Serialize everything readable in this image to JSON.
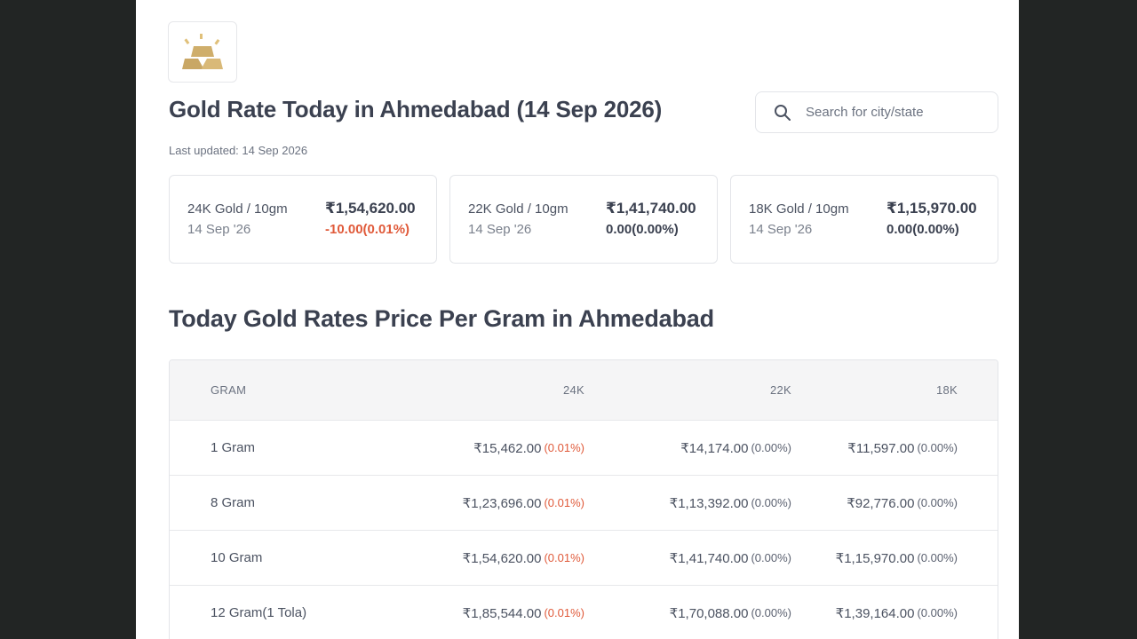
{
  "header": {
    "title": "Gold Rate Today in Ahmedabad (14 Sep 2026)",
    "last_updated": "Last updated: 14 Sep 2026"
  },
  "search": {
    "placeholder": "Search for city/state",
    "value": ""
  },
  "cards": [
    {
      "label": "24K Gold / 10gm",
      "date": "14 Sep '26",
      "price": "₹1,54,620.00",
      "change": "-10.00(0.01%)",
      "trend": "down"
    },
    {
      "label": "22K Gold / 10gm",
      "date": "14 Sep '26",
      "price": "₹1,41,740.00",
      "change": "0.00(0.00%)",
      "trend": "flat"
    },
    {
      "label": "18K Gold / 10gm",
      "date": "14 Sep '26",
      "price": "₹1,15,970.00",
      "change": "0.00(0.00%)",
      "trend": "flat"
    }
  ],
  "table": {
    "heading": "Today Gold Rates Price Per Gram in Ahmedabad",
    "columns": [
      "GRAM",
      "24K",
      "22K",
      "18K"
    ],
    "rows": [
      {
        "gram": "1 Gram",
        "k24": "₹15,462.00",
        "k24_pct": "(0.01%)",
        "k22": "₹14,174.00",
        "k22_pct": "(0.00%)",
        "k18": "₹11,597.00",
        "k18_pct": "(0.00%)"
      },
      {
        "gram": "8 Gram",
        "k24": "₹1,23,696.00",
        "k24_pct": "(0.01%)",
        "k22": "₹1,13,392.00",
        "k22_pct": "(0.00%)",
        "k18": "₹92,776.00",
        "k18_pct": "(0.00%)"
      },
      {
        "gram": "10 Gram",
        "k24": "₹1,54,620.00",
        "k24_pct": "(0.01%)",
        "k22": "₹1,41,740.00",
        "k22_pct": "(0.00%)",
        "k18": "₹1,15,970.00",
        "k18_pct": "(0.00%)"
      },
      {
        "gram": "12 Gram(1 Tola)",
        "k24": "₹1,85,544.00",
        "k24_pct": "(0.01%)",
        "k22": "₹1,70,088.00",
        "k22_pct": "(0.00%)",
        "k18": "₹1,39,164.00",
        "k18_pct": "(0.00%)"
      }
    ]
  },
  "colors": {
    "negative": "#e05a3a",
    "gold": "#d4b06a",
    "text": "#3b4150"
  },
  "icons": {
    "logo": "gold-bars-icon",
    "search": "search-icon"
  }
}
